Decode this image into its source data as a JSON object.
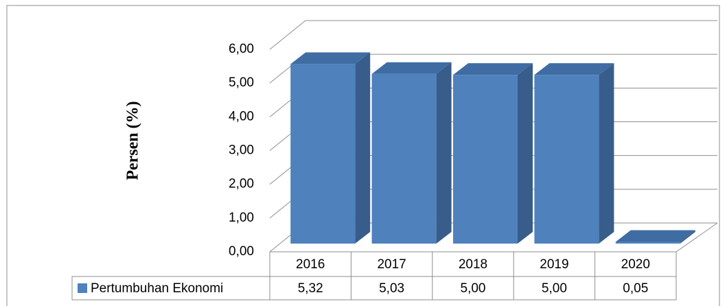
{
  "chart_data": {
    "type": "bar3d",
    "y_axis_label": "Persen (%)",
    "categories": [
      "2016",
      "2017",
      "2018",
      "2019",
      "2020"
    ],
    "series": [
      {
        "name": "Pertumbuhan Ekonomi",
        "color": "#4f81bd",
        "values": [
          5.32,
          5.03,
          5.0,
          5.0,
          0.05
        ],
        "value_labels": [
          "5,32",
          "5,03",
          "5,00",
          "5,00",
          "0,05"
        ]
      }
    ],
    "ylim": [
      0,
      6
    ],
    "yticks": [
      {
        "value": 0,
        "label": "0,00"
      },
      {
        "value": 1,
        "label": "1,00"
      },
      {
        "value": 2,
        "label": "2,00"
      },
      {
        "value": 3,
        "label": "3,00"
      },
      {
        "value": 4,
        "label": "4,00"
      },
      {
        "value": 5,
        "label": "5,00"
      },
      {
        "value": 6,
        "label": "6,00"
      }
    ],
    "grid": true,
    "data_table": true
  }
}
